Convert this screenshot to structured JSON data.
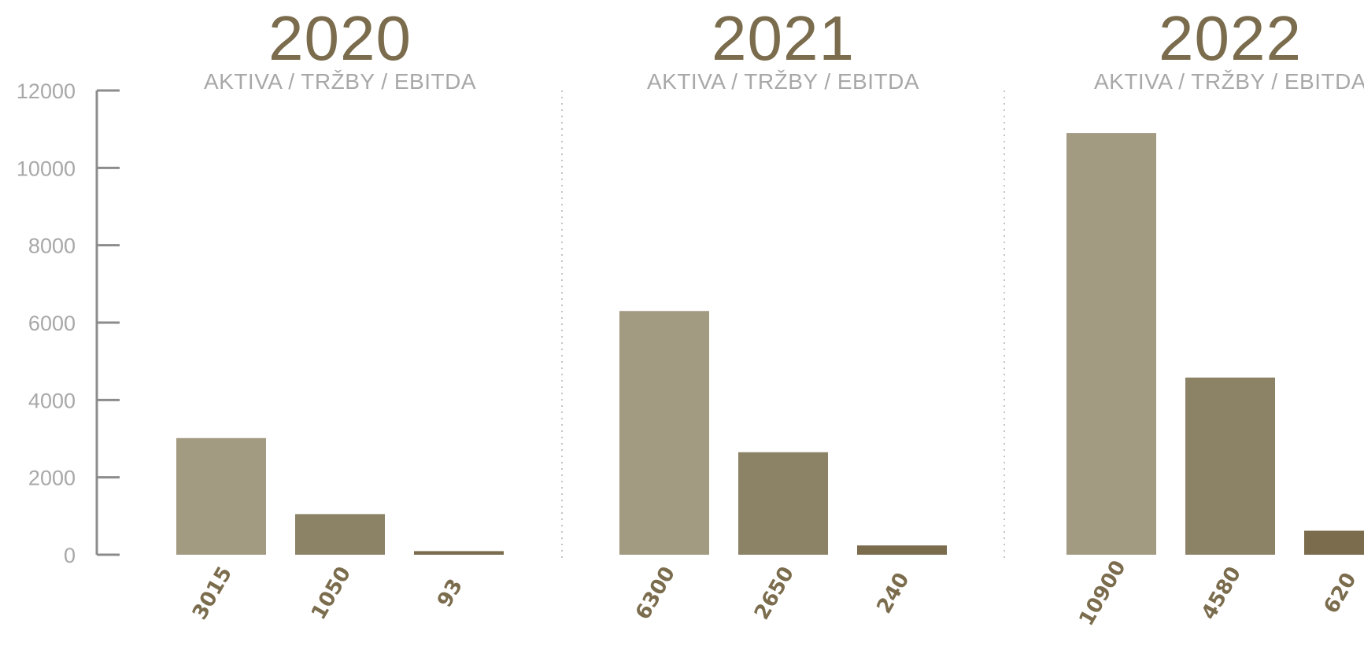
{
  "chart_data": {
    "type": "bar",
    "y_axis": {
      "ylim": [
        0,
        12000
      ],
      "ticks": [
        0,
        2000,
        4000,
        6000,
        8000,
        10000,
        12000
      ]
    },
    "series_colors": [
      "#a39a82",
      "#8c8266",
      "#7a6c4c"
    ],
    "title_color": "#7a6c4c",
    "subtitle_color": "#a8a8a8",
    "axis_color": "#8c8c8c",
    "groups": [
      {
        "year": "2020",
        "subtitle": "AKTIVA / TRŽBY / EBITDA",
        "values": [
          3015,
          1050,
          93
        ],
        "labels": [
          "3015",
          "1050",
          "93"
        ]
      },
      {
        "year": "2021",
        "subtitle": "AKTIVA / TRŽBY / EBITDA",
        "values": [
          6300,
          2650,
          240
        ],
        "labels": [
          "6300",
          "2650",
          "240"
        ]
      },
      {
        "year": "2022",
        "subtitle": "AKTIVA / TRŽBY / EBITDA",
        "values": [
          10900,
          4580,
          620
        ],
        "labels": [
          "10900",
          "4580",
          "620"
        ]
      }
    ]
  }
}
